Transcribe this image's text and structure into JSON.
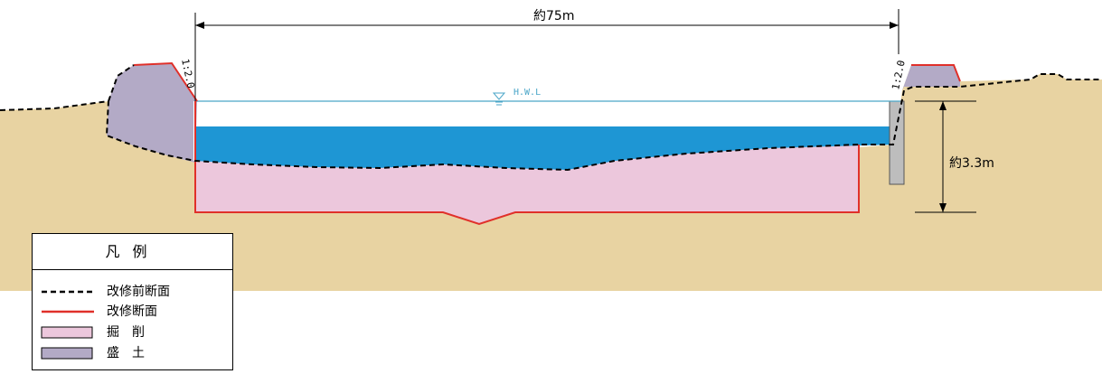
{
  "diagram": {
    "width_label": "約75m",
    "depth_label": "約3.3m",
    "hwl_label": "H.W.L",
    "left_slope_label": "1:2.0",
    "right_slope_label": "1:2.0"
  },
  "colors": {
    "ground": "#e8d3a2",
    "water": "#1e96d4",
    "excavation": "#ecc7dc",
    "embankment": "#b3aac6",
    "new_section_line": "#e0302a",
    "old_section_line": "#000000",
    "hwl_line": "#4aa6c8"
  },
  "legend": {
    "title": "凡例",
    "items": [
      {
        "key": "old-section",
        "label": "改修前断面"
      },
      {
        "key": "new-section",
        "label": "改修断面"
      },
      {
        "key": "excavation",
        "label": "掘　削"
      },
      {
        "key": "embankment",
        "label": "盛　土"
      }
    ]
  }
}
